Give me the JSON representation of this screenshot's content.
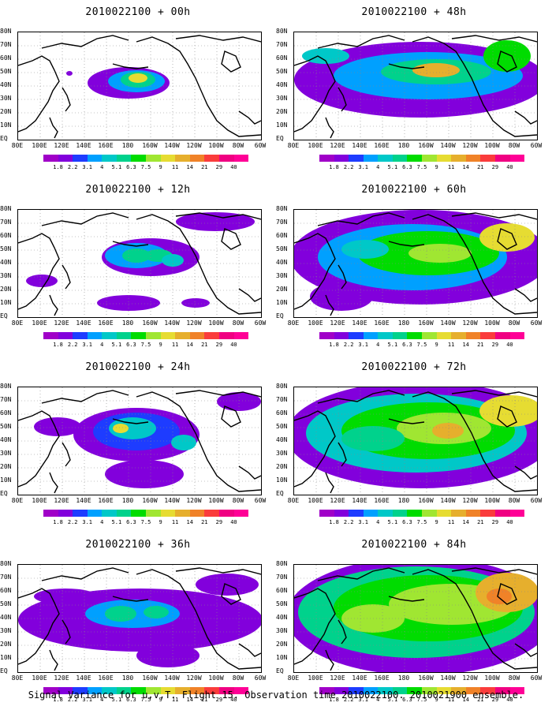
{
  "caption": "Signal Variance for u,v,T. Flight 15. Observation time 2010022100. 2010021900 ensemble.",
  "lat_labels": [
    "80N",
    "70N",
    "60N",
    "50N",
    "40N",
    "30N",
    "20N",
    "10N",
    "EQ"
  ],
  "lon_labels": [
    "80E",
    "100E",
    "120E",
    "140E",
    "160E",
    "180",
    "160W",
    "140W",
    "120W",
    "100W",
    "80W",
    "60W"
  ],
  "colorbar": {
    "labels": [
      "1.8",
      "2.2",
      "3.1",
      "4",
      "5.1",
      "6.3",
      "7.5",
      "9",
      "11",
      "14",
      "21",
      "29",
      "40"
    ],
    "colors": [
      "#a000c8",
      "#8200dc",
      "#1e3cff",
      "#00a0ff",
      "#00c8c8",
      "#00d28c",
      "#00dc00",
      "#a0e632",
      "#e6dc32",
      "#e6af2d",
      "#f08228",
      "#fa3c3c",
      "#f00082"
    ]
  },
  "panels": [
    {
      "title": "2010022100 + 00h",
      "level": 0
    },
    {
      "title": "2010022100 + 12h",
      "level": 1
    },
    {
      "title": "2010022100 + 24h",
      "level": 2
    },
    {
      "title": "2010022100 + 36h",
      "level": 3
    },
    {
      "title": "2010022100 + 48h",
      "level": 4
    },
    {
      "title": "2010022100 + 60h",
      "level": 5
    },
    {
      "title": "2010022100 + 72h",
      "level": 6
    },
    {
      "title": "2010022100 + 84h",
      "level": 7
    }
  ]
}
